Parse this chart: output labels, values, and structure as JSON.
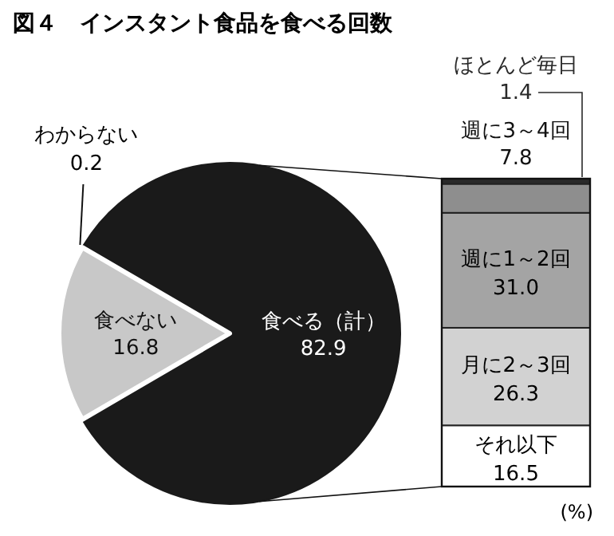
{
  "chart_data": [
    {
      "type": "pie",
      "title": "図４　インスタント食品を食べる回数",
      "categories": [
        "食べる（計）",
        "わからない",
        "食べない"
      ],
      "values": [
        82.9,
        0.2,
        16.8
      ],
      "colors": [
        "#1a1a1a",
        "#1a1a1a",
        "#c8c8c8"
      ],
      "data_labels": true
    },
    {
      "type": "bar",
      "stacked": true,
      "categories": [
        null
      ],
      "annotations": [
        "(%)"
      ],
      "series": [
        {
          "name": "それ以下",
          "color": "#ffffff",
          "values": [
            16.5
          ],
          "value_labels": [
            "16.5"
          ]
        },
        {
          "name": "月に2～3回",
          "color": "#d2d2d2",
          "values": [
            26.3
          ],
          "value_labels": [
            "26.3"
          ]
        },
        {
          "name": "週に1～2回",
          "color": "#a4a4a4",
          "values": [
            31.0
          ],
          "value_labels": [
            "31.0"
          ]
        },
        {
          "name": "週に3～4回",
          "color": "#8e8e8e",
          "values": [
            7.8
          ],
          "value_labels": [
            "7.8"
          ]
        },
        {
          "name": "ほとんど毎日",
          "color": "#2a2a2a",
          "values": [
            1.4
          ],
          "value_labels": [
            "1.4"
          ]
        }
      ]
    }
  ]
}
